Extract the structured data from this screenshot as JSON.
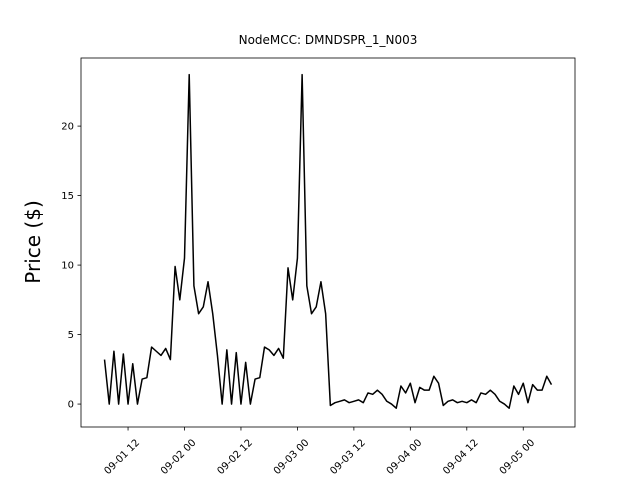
{
  "chart_data": {
    "type": "line",
    "title": "NodeMCC: DMNDSPR_1_N003",
    "y_label": "Price ($)",
    "color": "#000000",
    "x": [
      "09-01 07",
      "09-01 08",
      "09-01 09",
      "09-01 10",
      "09-01 11",
      "09-01 12",
      "09-01 13",
      "09-01 14",
      "09-01 15",
      "09-01 16",
      "09-01 17",
      "09-01 18",
      "09-01 19",
      "09-01 20",
      "09-01 21",
      "09-01 22",
      "09-01 23",
      "09-02 00",
      "09-02 01",
      "09-02 02",
      "09-02 03",
      "09-02 04",
      "09-02 05",
      "09-02 06",
      "09-02 07",
      "09-02 08",
      "09-02 09",
      "09-02 10",
      "09-02 11",
      "09-02 12",
      "09-02 13",
      "09-02 14",
      "09-02 15",
      "09-02 16",
      "09-02 17",
      "09-02 18",
      "09-02 19",
      "09-02 20",
      "09-02 21",
      "09-02 22",
      "09-02 23",
      "09-03 00",
      "09-03 01",
      "09-03 02",
      "09-03 03",
      "09-03 04",
      "09-03 05",
      "09-03 06",
      "09-03 07",
      "09-03 08",
      "09-03 09",
      "09-03 10",
      "09-03 11",
      "09-03 12",
      "09-03 13",
      "09-03 14",
      "09-03 15",
      "09-03 16",
      "09-03 17",
      "09-03 18",
      "09-03 19",
      "09-03 20",
      "09-03 21",
      "09-03 22",
      "09-03 23",
      "09-04 00",
      "09-04 01",
      "09-04 02",
      "09-04 03",
      "09-04 04",
      "09-04 05",
      "09-04 06",
      "09-04 07",
      "09-04 08",
      "09-04 09",
      "09-04 10",
      "09-04 11",
      "09-04 12",
      "09-04 13",
      "09-04 14",
      "09-04 15",
      "09-04 16",
      "09-04 17",
      "09-04 18",
      "09-04 19",
      "09-04 20",
      "09-04 21",
      "09-04 22",
      "09-04 23",
      "09-05 00",
      "09-05 01",
      "09-05 02",
      "09-05 03",
      "09-05 04",
      "09-05 05",
      "09-05 06"
    ],
    "values": [
      3.2,
      0,
      3.8,
      0,
      3.6,
      0,
      2.9,
      0,
      1.8,
      1.9,
      4.1,
      3.8,
      3.5,
      4.0,
      3.2,
      9.9,
      7.5,
      10.5,
      23.7,
      8.5,
      6.5,
      7,
      8.8,
      6.5,
      3.5,
      0,
      3.9,
      0,
      3.7,
      0,
      3.0,
      0,
      1.8,
      1.9,
      4.1,
      3.9,
      3.5,
      4.0,
      3.3,
      9.8,
      7.5,
      10.5,
      23.7,
      8.5,
      6.5,
      7,
      8.8,
      6.5,
      -0.1,
      0.1,
      0.2,
      0.3,
      0.1,
      0.2,
      0.3,
      0.1,
      0.8,
      0.7,
      1.0,
      0.7,
      0.2,
      0,
      -0.3,
      1.3,
      0.8,
      1.5,
      0.1,
      1.2,
      1.0,
      1.0,
      2.0,
      1.5,
      -0.1,
      0.2,
      0.3,
      0.1,
      0.2,
      0.1,
      0.3,
      0.1,
      0.8,
      0.7,
      1.0,
      0.7,
      0.2,
      0,
      -0.3,
      1.3,
      0.7,
      1.5,
      0.1,
      1.4,
      1.0,
      1.0,
      2.0,
      1.4
    ],
    "xlim": [
      "09-01 02",
      "09-05 11"
    ],
    "xticks": [
      "09-01 12",
      "09-02 00",
      "09-02 12",
      "09-03 00",
      "09-03 12",
      "09-04 00",
      "09-04 12",
      "09-05 00"
    ],
    "ylim": [
      -1.65,
      24.9
    ],
    "yticks": [
      0,
      5,
      10,
      15,
      20
    ]
  }
}
